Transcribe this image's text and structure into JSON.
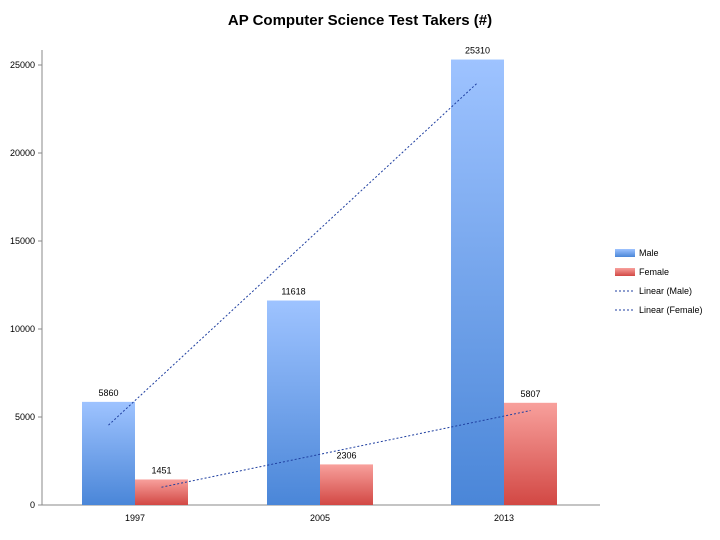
{
  "chart_data": {
    "type": "bar",
    "title": "AP Computer Science Test Takers (#)",
    "xlabel": "",
    "ylabel": "",
    "categories": [
      "1997",
      "2005",
      "2013"
    ],
    "series": [
      {
        "name": "Male",
        "values": [
          5860,
          11618,
          25310
        ],
        "color_top": "#9EC3FF",
        "color_bottom": "#4A86D8"
      },
      {
        "name": "Female",
        "values": [
          1451,
          2306,
          5807
        ],
        "color_top": "#F8A09C",
        "color_bottom": "#D24844"
      }
    ],
    "trendlines": [
      {
        "name": "Linear (Male)",
        "series": "Male",
        "color": "#1F3FA0"
      },
      {
        "name": "Linear (Female)",
        "series": "Female",
        "color": "#1F3FA0"
      }
    ],
    "ylim": [
      0,
      25000
    ],
    "yticks": [
      0,
      5000,
      10000,
      15000,
      20000,
      25000
    ],
    "grid": false,
    "legend_position": "right",
    "data_labels": true
  }
}
